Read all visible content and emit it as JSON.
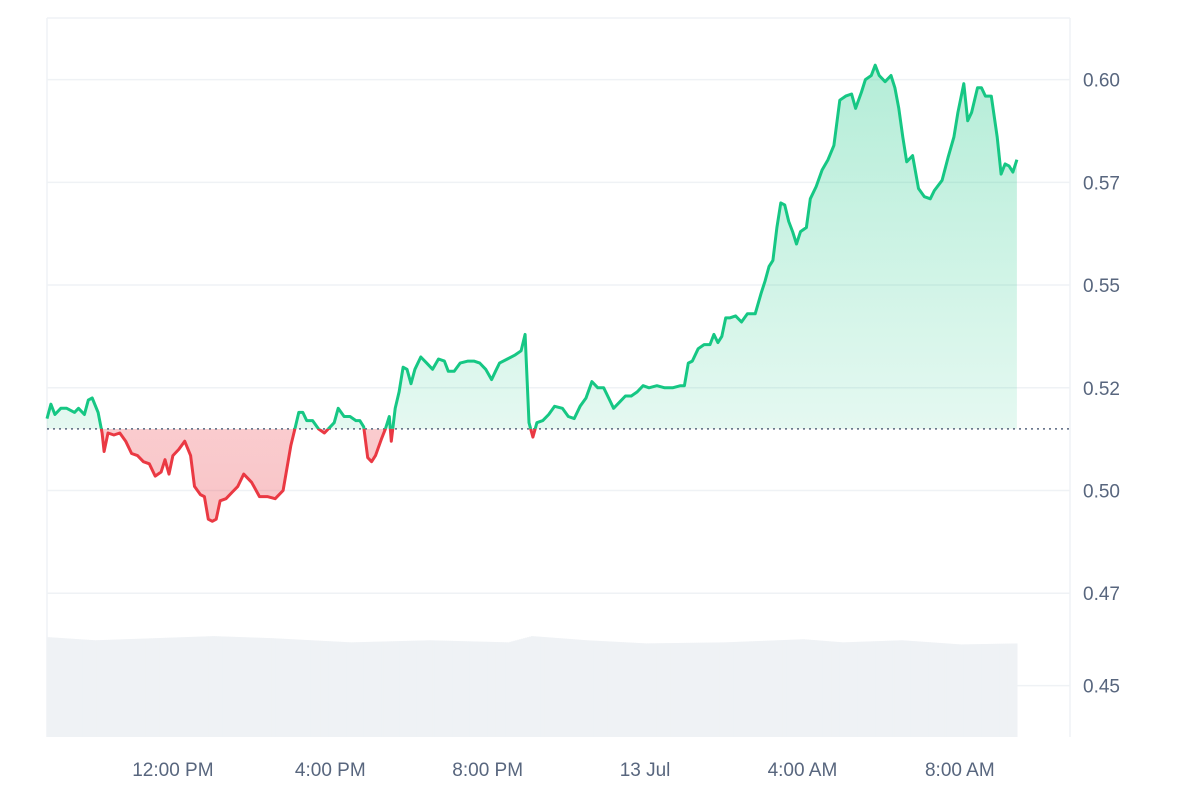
{
  "colors": {
    "up_line": "#16c784",
    "down_line": "#ea3943",
    "up_fill": "#16c784",
    "down_fill": "#ea3943",
    "grid": "#eff2f5",
    "baseline": "#58667e",
    "volume": "#eff2f5",
    "axis_text": "#58667e"
  },
  "chart_data": {
    "type": "area",
    "baseline": 0.5125,
    "ylim": [
      0.4375,
      0.6125
    ],
    "y_ticks": [
      {
        "value": 0.45,
        "label": "0.45"
      },
      {
        "value": 0.4725,
        "label": "0.47"
      },
      {
        "value": 0.4975,
        "label": "0.50"
      },
      {
        "value": 0.5225,
        "label": "0.52"
      },
      {
        "value": 0.5475,
        "label": "0.55"
      },
      {
        "value": 0.5725,
        "label": "0.57"
      },
      {
        "value": 0.5975,
        "label": "0.60"
      }
    ],
    "x_range_hours": [
      8.8,
      34.8
    ],
    "x_ticks": [
      {
        "hour": 12,
        "label": "12:00 PM"
      },
      {
        "hour": 16,
        "label": "4:00 PM"
      },
      {
        "hour": 20,
        "label": "8:00 PM"
      },
      {
        "hour": 24,
        "label": "13 Jul"
      },
      {
        "hour": 28,
        "label": "4:00 AM"
      },
      {
        "hour": 32,
        "label": "8:00 AM"
      }
    ],
    "price": [
      [
        8.8,
        0.515
      ],
      [
        8.9,
        0.5185
      ],
      [
        9.0,
        0.516
      ],
      [
        9.15,
        0.5175
      ],
      [
        9.3,
        0.5175
      ],
      [
        9.5,
        0.5165
      ],
      [
        9.6,
        0.5175
      ],
      [
        9.75,
        0.516
      ],
      [
        9.85,
        0.5195
      ],
      [
        9.95,
        0.52
      ],
      [
        10.1,
        0.5165
      ],
      [
        10.2,
        0.5115
      ],
      [
        10.25,
        0.507
      ],
      [
        10.35,
        0.5115
      ],
      [
        10.5,
        0.511
      ],
      [
        10.65,
        0.5115
      ],
      [
        10.8,
        0.5095
      ],
      [
        10.95,
        0.5065
      ],
      [
        11.1,
        0.506
      ],
      [
        11.25,
        0.5045
      ],
      [
        11.4,
        0.504
      ],
      [
        11.55,
        0.501
      ],
      [
        11.7,
        0.502
      ],
      [
        11.8,
        0.505
      ],
      [
        11.9,
        0.5015
      ],
      [
        12.0,
        0.506
      ],
      [
        12.15,
        0.5075
      ],
      [
        12.3,
        0.5095
      ],
      [
        12.45,
        0.506
      ],
      [
        12.55,
        0.4985
      ],
      [
        12.7,
        0.4965
      ],
      [
        12.8,
        0.496
      ],
      [
        12.9,
        0.4905
      ],
      [
        13.0,
        0.49
      ],
      [
        13.1,
        0.4905
      ],
      [
        13.2,
        0.495
      ],
      [
        13.35,
        0.4955
      ],
      [
        13.5,
        0.497
      ],
      [
        13.65,
        0.4985
      ],
      [
        13.8,
        0.5015
      ],
      [
        14.0,
        0.4995
      ],
      [
        14.2,
        0.496
      ],
      [
        14.4,
        0.496
      ],
      [
        14.6,
        0.4955
      ],
      [
        14.8,
        0.4975
      ],
      [
        15.0,
        0.5085
      ],
      [
        15.1,
        0.5125
      ],
      [
        15.2,
        0.5165
      ],
      [
        15.3,
        0.5165
      ],
      [
        15.4,
        0.5145
      ],
      [
        15.55,
        0.5145
      ],
      [
        15.7,
        0.5125
      ],
      [
        15.85,
        0.5115
      ],
      [
        16.0,
        0.513
      ],
      [
        16.1,
        0.514
      ],
      [
        16.2,
        0.5175
      ],
      [
        16.35,
        0.5155
      ],
      [
        16.5,
        0.5155
      ],
      [
        16.65,
        0.5145
      ],
      [
        16.75,
        0.5145
      ],
      [
        16.85,
        0.513
      ],
      [
        16.95,
        0.5055
      ],
      [
        17.05,
        0.5045
      ],
      [
        17.15,
        0.506
      ],
      [
        17.3,
        0.51
      ],
      [
        17.4,
        0.5125
      ],
      [
        17.5,
        0.5155
      ],
      [
        17.55,
        0.5095
      ],
      [
        17.65,
        0.5175
      ],
      [
        17.75,
        0.5215
      ],
      [
        17.85,
        0.5275
      ],
      [
        17.95,
        0.527
      ],
      [
        18.05,
        0.5235
      ],
      [
        18.15,
        0.527
      ],
      [
        18.3,
        0.53
      ],
      [
        18.45,
        0.5285
      ],
      [
        18.6,
        0.527
      ],
      [
        18.75,
        0.5295
      ],
      [
        18.9,
        0.529
      ],
      [
        19.0,
        0.5265
      ],
      [
        19.15,
        0.5265
      ],
      [
        19.3,
        0.5285
      ],
      [
        19.5,
        0.529
      ],
      [
        19.65,
        0.529
      ],
      [
        19.8,
        0.5285
      ],
      [
        19.95,
        0.527
      ],
      [
        20.1,
        0.5245
      ],
      [
        20.2,
        0.5265
      ],
      [
        20.3,
        0.5285
      ],
      [
        20.5,
        0.5295
      ],
      [
        20.7,
        0.5305
      ],
      [
        20.85,
        0.5315
      ],
      [
        20.95,
        0.5355
      ],
      [
        21.05,
        0.514
      ],
      [
        21.15,
        0.5105
      ],
      [
        21.25,
        0.514
      ],
      [
        21.4,
        0.5145
      ],
      [
        21.55,
        0.516
      ],
      [
        21.7,
        0.518
      ],
      [
        21.9,
        0.5175
      ],
      [
        22.05,
        0.5155
      ],
      [
        22.2,
        0.515
      ],
      [
        22.35,
        0.518
      ],
      [
        22.5,
        0.52
      ],
      [
        22.65,
        0.524
      ],
      [
        22.8,
        0.5225
      ],
      [
        22.95,
        0.5225
      ],
      [
        23.1,
        0.5195
      ],
      [
        23.2,
        0.5175
      ],
      [
        23.35,
        0.519
      ],
      [
        23.5,
        0.5205
      ],
      [
        23.65,
        0.5205
      ],
      [
        23.8,
        0.5215
      ],
      [
        23.95,
        0.523
      ],
      [
        24.1,
        0.5225
      ],
      [
        24.3,
        0.523
      ],
      [
        24.5,
        0.5225
      ],
      [
        24.7,
        0.5225
      ],
      [
        24.9,
        0.523
      ],
      [
        25.0,
        0.523
      ],
      [
        25.1,
        0.5285
      ],
      [
        25.2,
        0.529
      ],
      [
        25.35,
        0.532
      ],
      [
        25.5,
        0.533
      ],
      [
        25.65,
        0.533
      ],
      [
        25.75,
        0.5355
      ],
      [
        25.85,
        0.5335
      ],
      [
        25.95,
        0.535
      ],
      [
        26.05,
        0.5395
      ],
      [
        26.15,
        0.5395
      ],
      [
        26.3,
        0.54
      ],
      [
        26.45,
        0.5385
      ],
      [
        26.6,
        0.5405
      ],
      [
        26.8,
        0.5405
      ],
      [
        26.95,
        0.5455
      ],
      [
        27.05,
        0.5485
      ],
      [
        27.15,
        0.552
      ],
      [
        27.25,
        0.5535
      ],
      [
        27.35,
        0.5615
      ],
      [
        27.45,
        0.5675
      ],
      [
        27.55,
        0.567
      ],
      [
        27.65,
        0.563
      ],
      [
        27.75,
        0.5605
      ],
      [
        27.85,
        0.5575
      ],
      [
        27.95,
        0.5605
      ],
      [
        28.1,
        0.5615
      ],
      [
        28.2,
        0.5685
      ],
      [
        28.35,
        0.5715
      ],
      [
        28.5,
        0.5755
      ],
      [
        28.65,
        0.578
      ],
      [
        28.8,
        0.5815
      ],
      [
        28.95,
        0.5925
      ],
      [
        29.1,
        0.5935
      ],
      [
        29.25,
        0.594
      ],
      [
        29.35,
        0.5905
      ],
      [
        29.5,
        0.5945
      ],
      [
        29.6,
        0.5975
      ],
      [
        29.75,
        0.5985
      ],
      [
        29.85,
        0.601
      ],
      [
        29.95,
        0.5985
      ],
      [
        30.1,
        0.597
      ],
      [
        30.25,
        0.5985
      ],
      [
        30.35,
        0.5955
      ],
      [
        30.45,
        0.5905
      ],
      [
        30.55,
        0.5835
      ],
      [
        30.65,
        0.5775
      ],
      [
        30.8,
        0.579
      ],
      [
        30.95,
        0.571
      ],
      [
        31.1,
        0.569
      ],
      [
        31.25,
        0.5685
      ],
      [
        31.35,
        0.5705
      ],
      [
        31.55,
        0.573
      ],
      [
        31.7,
        0.5785
      ],
      [
        31.85,
        0.5835
      ],
      [
        31.95,
        0.5895
      ],
      [
        32.1,
        0.5965
      ],
      [
        32.2,
        0.5875
      ],
      [
        32.3,
        0.5895
      ],
      [
        32.45,
        0.5955
      ],
      [
        32.55,
        0.5955
      ],
      [
        32.65,
        0.5935
      ],
      [
        32.8,
        0.5935
      ],
      [
        32.95,
        0.5835
      ],
      [
        33.05,
        0.5745
      ],
      [
        33.15,
        0.577
      ],
      [
        33.25,
        0.5765
      ],
      [
        33.35,
        0.575
      ],
      [
        33.45,
        0.578
      ]
    ],
    "volume": [
      [
        8.8,
        0.96
      ],
      [
        10.0,
        0.93
      ],
      [
        11.5,
        0.95
      ],
      [
        13.0,
        0.97
      ],
      [
        14.5,
        0.95
      ],
      [
        16.5,
        0.91
      ],
      [
        18.5,
        0.93
      ],
      [
        20.5,
        0.91
      ],
      [
        21.1,
        0.97
      ],
      [
        22.5,
        0.93
      ],
      [
        24.0,
        0.9
      ],
      [
        26.0,
        0.91
      ],
      [
        28.0,
        0.94
      ],
      [
        29.0,
        0.91
      ],
      [
        30.5,
        0.93
      ],
      [
        32.0,
        0.89
      ],
      [
        33.45,
        0.9
      ]
    ]
  }
}
